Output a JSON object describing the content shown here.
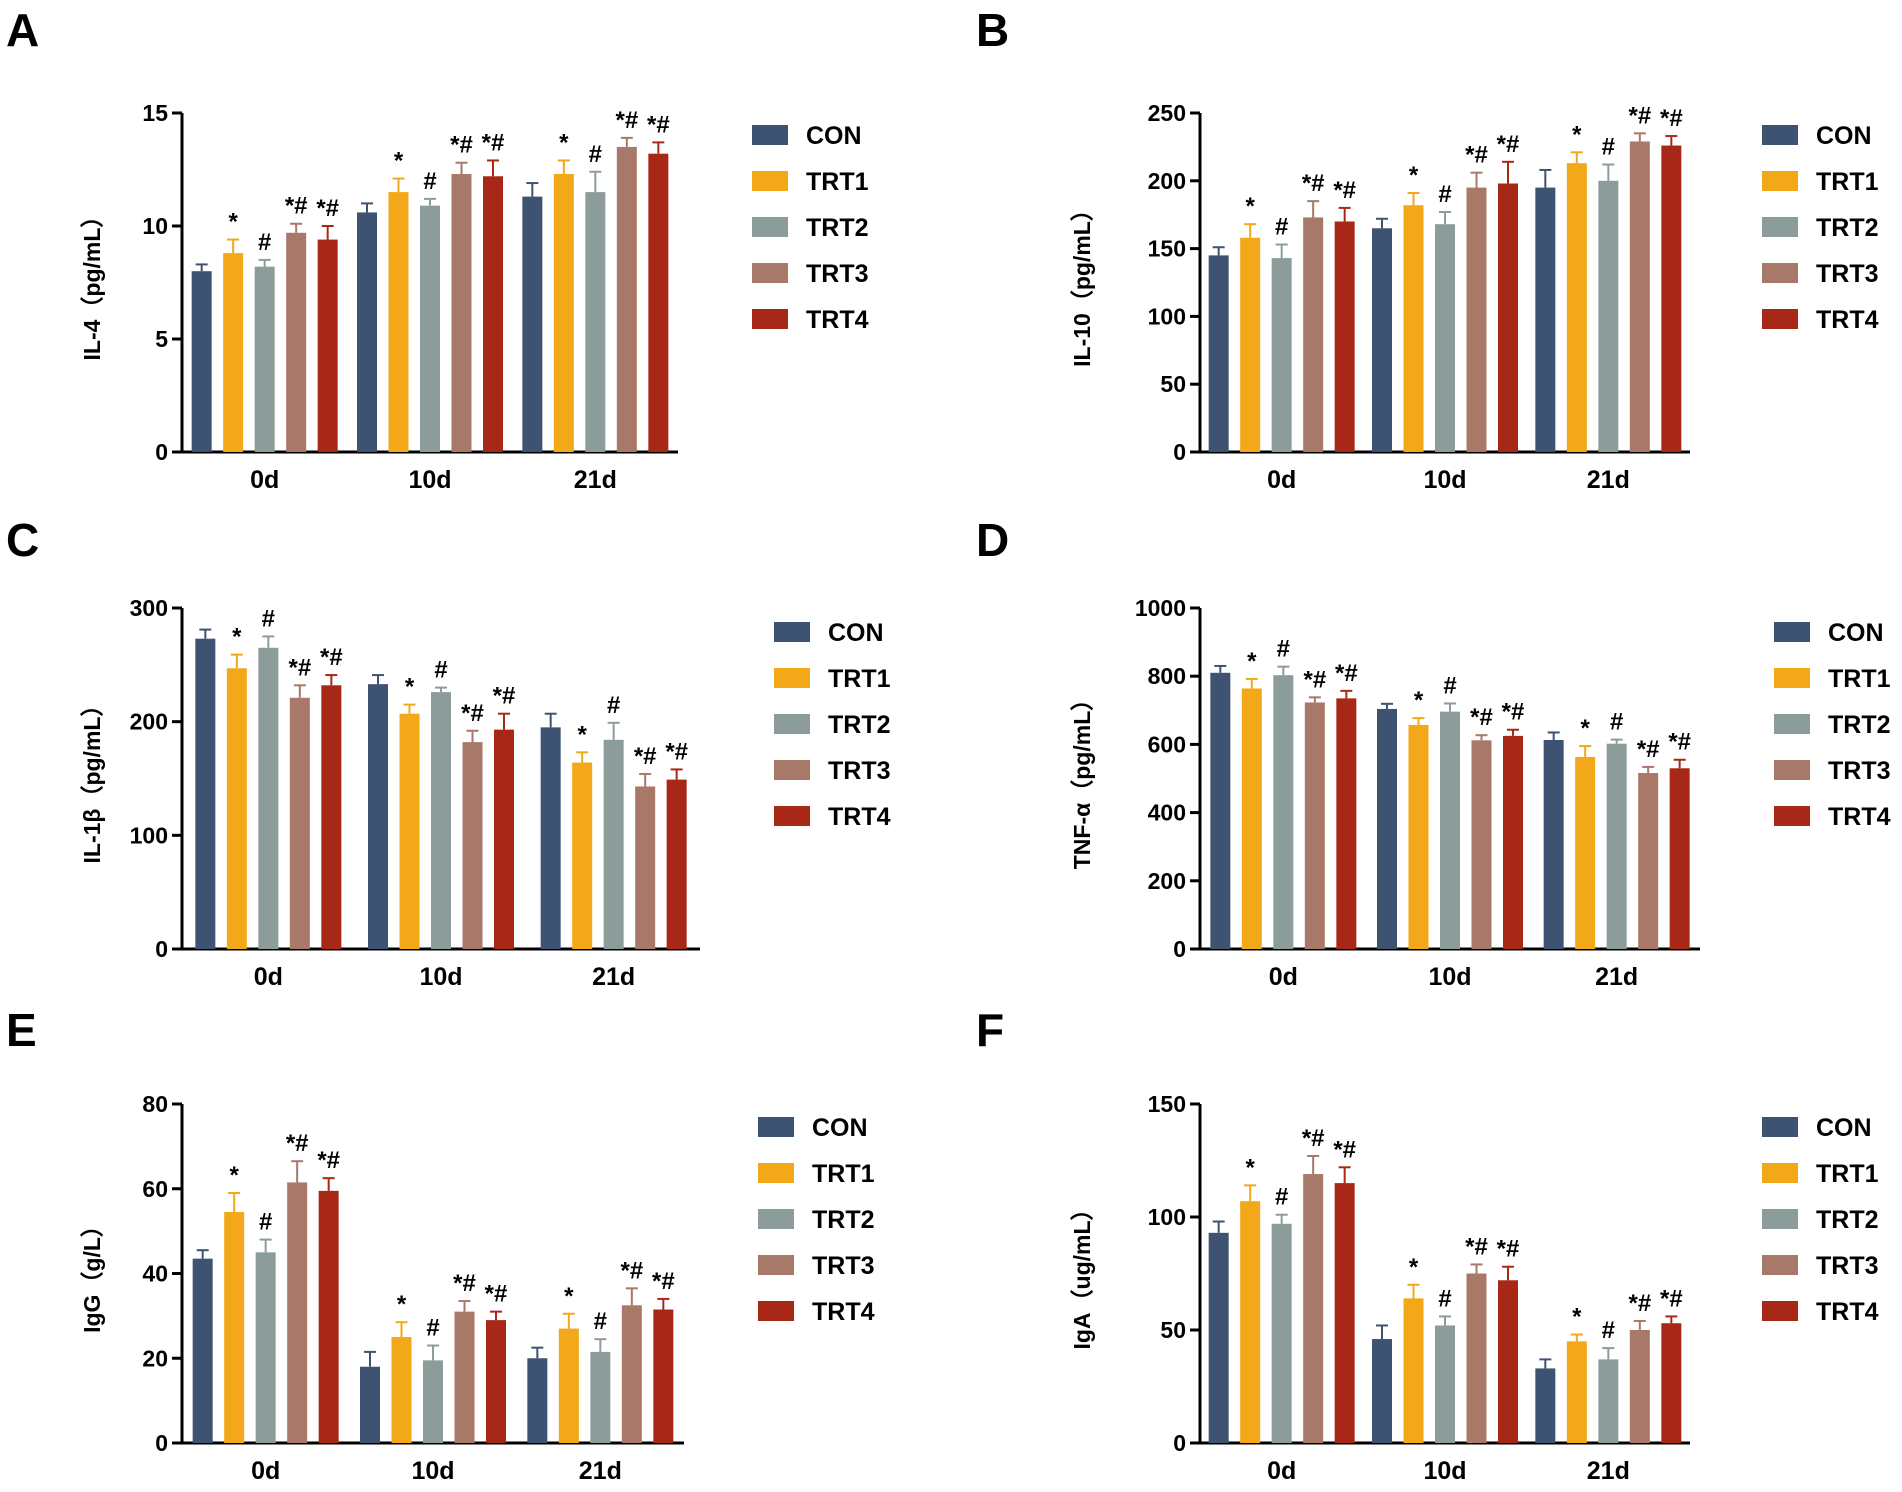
{
  "colors": {
    "series": [
      "#3e5272",
      "#f2a818",
      "#8c9c9a",
      "#a87868",
      "#a82818"
    ],
    "axis": "#000000"
  },
  "chart_data": [
    {
      "panel": "A",
      "type": "bar",
      "ylabel": "IL-4（pg/mL）",
      "categories": [
        "0d",
        "10d",
        "21d"
      ],
      "ylim": [
        0,
        15
      ],
      "yticks": [
        "0",
        "5",
        "10",
        "15"
      ],
      "legend": [
        "CON",
        "TRT1",
        "TRT2",
        "TRT3",
        "TRT4"
      ],
      "series": [
        {
          "name": "CON",
          "values": [
            8.0,
            10.6,
            11.3
          ],
          "errors": [
            0.3,
            0.4,
            0.6
          ],
          "sig": [
            "",
            "",
            ""
          ]
        },
        {
          "name": "TRT1",
          "values": [
            8.8,
            11.5,
            12.3
          ],
          "errors": [
            0.6,
            0.6,
            0.6
          ],
          "sig": [
            "*",
            "*",
            "*"
          ]
        },
        {
          "name": "TRT2",
          "values": [
            8.2,
            10.9,
            11.5
          ],
          "errors": [
            0.3,
            0.3,
            0.9
          ],
          "sig": [
            "#",
            "#",
            "#"
          ]
        },
        {
          "name": "TRT3",
          "values": [
            9.7,
            12.3,
            13.5
          ],
          "errors": [
            0.4,
            0.5,
            0.4
          ],
          "sig": [
            "*#",
            "*#",
            "*#"
          ]
        },
        {
          "name": "TRT4",
          "values": [
            9.4,
            12.2,
            13.2
          ],
          "errors": [
            0.6,
            0.7,
            0.5
          ],
          "sig": [
            "*#",
            "*#",
            "*#"
          ]
        }
      ]
    },
    {
      "panel": "B",
      "type": "bar",
      "ylabel": "IL-10（pg/mL）",
      "categories": [
        "0d",
        "10d",
        "21d"
      ],
      "ylim": [
        0,
        250
      ],
      "yticks": [
        "0",
        "50",
        "100",
        "150",
        "200",
        "250"
      ],
      "legend": [
        "CON",
        "TRT1",
        "TRT2",
        "TRT3",
        "TRT4"
      ],
      "series": [
        {
          "name": "CON",
          "values": [
            145,
            165,
            195
          ],
          "errors": [
            6,
            7,
            13
          ],
          "sig": [
            "",
            "",
            ""
          ]
        },
        {
          "name": "TRT1",
          "values": [
            158,
            182,
            213
          ],
          "errors": [
            10,
            9,
            8
          ],
          "sig": [
            "*",
            "*",
            "*"
          ]
        },
        {
          "name": "TRT2",
          "values": [
            143,
            168,
            200
          ],
          "errors": [
            10,
            9,
            12
          ],
          "sig": [
            "#",
            "#",
            "#"
          ]
        },
        {
          "name": "TRT3",
          "values": [
            173,
            195,
            229
          ],
          "errors": [
            12,
            11,
            6
          ],
          "sig": [
            "*#",
            "*#",
            "*#"
          ]
        },
        {
          "name": "TRT4",
          "values": [
            170,
            198,
            226
          ],
          "errors": [
            10,
            16,
            7
          ],
          "sig": [
            "*#",
            "*#",
            "*#"
          ]
        }
      ]
    },
    {
      "panel": "C",
      "type": "bar",
      "ylabel": "IL-1β（pg/mL）",
      "categories": [
        "0d",
        "10d",
        "21d"
      ],
      "ylim": [
        0,
        300
      ],
      "yticks": [
        "0",
        "100",
        "200",
        "300"
      ],
      "legend": [
        "CON",
        "TRT1",
        "TRT2",
        "TRT3",
        "TRT4"
      ],
      "series": [
        {
          "name": "CON",
          "values": [
            273,
            233,
            195
          ],
          "errors": [
            8,
            8,
            12
          ],
          "sig": [
            "",
            "",
            ""
          ]
        },
        {
          "name": "TRT1",
          "values": [
            247,
            207,
            164
          ],
          "errors": [
            12,
            8,
            9
          ],
          "sig": [
            "*",
            "*",
            "*"
          ]
        },
        {
          "name": "TRT2",
          "values": [
            265,
            226,
            184
          ],
          "errors": [
            10,
            4,
            15
          ],
          "sig": [
            "#",
            "#",
            "#"
          ]
        },
        {
          "name": "TRT3",
          "values": [
            221,
            182,
            143
          ],
          "errors": [
            11,
            10,
            11
          ],
          "sig": [
            "*#",
            "*#",
            "*#"
          ]
        },
        {
          "name": "TRT4",
          "values": [
            232,
            193,
            149
          ],
          "errors": [
            9,
            14,
            9
          ],
          "sig": [
            "*#",
            "*#",
            "*#"
          ]
        }
      ]
    },
    {
      "panel": "D",
      "type": "bar",
      "ylabel": "TNF-α（pg/mL）",
      "categories": [
        "0d",
        "10d",
        "21d"
      ],
      "ylim": [
        0,
        1000
      ],
      "yticks": [
        "0",
        "200",
        "400",
        "600",
        "800",
        "1000"
      ],
      "legend": [
        "CON",
        "TRT1",
        "TRT2",
        "TRT3",
        "TRT4"
      ],
      "series": [
        {
          "name": "CON",
          "values": [
            810,
            704,
            613
          ],
          "errors": [
            20,
            15,
            22
          ],
          "sig": [
            "",
            "",
            ""
          ]
        },
        {
          "name": "TRT1",
          "values": [
            764,
            657,
            563
          ],
          "errors": [
            28,
            20,
            32
          ],
          "sig": [
            "*",
            "*",
            "*"
          ]
        },
        {
          "name": "TRT2",
          "values": [
            803,
            696,
            602
          ],
          "errors": [
            25,
            24,
            12
          ],
          "sig": [
            "#",
            "#",
            "#"
          ]
        },
        {
          "name": "TRT3",
          "values": [
            723,
            612,
            516
          ],
          "errors": [
            15,
            15,
            18
          ],
          "sig": [
            "*#",
            "*#",
            "*#"
          ]
        },
        {
          "name": "TRT4",
          "values": [
            735,
            625,
            530
          ],
          "errors": [
            22,
            18,
            25
          ],
          "sig": [
            "*#",
            "*#",
            "*#"
          ]
        }
      ]
    },
    {
      "panel": "E",
      "type": "bar",
      "ylabel": "IgG（g/L）",
      "categories": [
        "0d",
        "10d",
        "21d"
      ],
      "ylim": [
        0,
        80
      ],
      "yticks": [
        "0",
        "20",
        "40",
        "60",
        "80"
      ],
      "legend": [
        "CON",
        "TRT1",
        "TRT2",
        "TRT3",
        "TRT4"
      ],
      "series": [
        {
          "name": "CON",
          "values": [
            43.5,
            18.0,
            20.0
          ],
          "errors": [
            2.0,
            3.5,
            2.5
          ],
          "sig": [
            "",
            "",
            ""
          ]
        },
        {
          "name": "TRT1",
          "values": [
            54.5,
            25.0,
            27.0
          ],
          "errors": [
            4.5,
            3.5,
            3.5
          ],
          "sig": [
            "*",
            "*",
            "*"
          ]
        },
        {
          "name": "TRT2",
          "values": [
            45.0,
            19.5,
            21.5
          ],
          "errors": [
            3.0,
            3.5,
            3.0
          ],
          "sig": [
            "#",
            "#",
            "#"
          ]
        },
        {
          "name": "TRT3",
          "values": [
            61.5,
            31.0,
            32.5
          ],
          "errors": [
            5.0,
            2.5,
            4.0
          ],
          "sig": [
            "*#",
            "*#",
            "*#"
          ]
        },
        {
          "name": "TRT4",
          "values": [
            59.5,
            29.0,
            31.5
          ],
          "errors": [
            3.0,
            2.0,
            2.5
          ],
          "sig": [
            "*#",
            "*#",
            "*#"
          ]
        }
      ]
    },
    {
      "panel": "F",
      "type": "bar",
      "ylabel": "IgA（ug/mL）",
      "categories": [
        "0d",
        "10d",
        "21d"
      ],
      "ylim": [
        0,
        150
      ],
      "yticks": [
        "0",
        "50",
        "100",
        "150"
      ],
      "legend": [
        "CON",
        "TRT1",
        "TRT2",
        "TRT3",
        "TRT4"
      ],
      "series": [
        {
          "name": "CON",
          "values": [
            93,
            46,
            33
          ],
          "errors": [
            5,
            6,
            4
          ],
          "sig": [
            "",
            "",
            ""
          ]
        },
        {
          "name": "TRT1",
          "values": [
            107,
            64,
            45
          ],
          "errors": [
            7,
            6,
            3
          ],
          "sig": [
            "*",
            "*",
            "*"
          ]
        },
        {
          "name": "TRT2",
          "values": [
            97,
            52,
            37
          ],
          "errors": [
            4,
            4,
            5
          ],
          "sig": [
            "#",
            "#",
            "#"
          ]
        },
        {
          "name": "TRT3",
          "values": [
            119,
            75,
            50
          ],
          "errors": [
            8,
            4,
            4
          ],
          "sig": [
            "*#",
            "*#",
            "*#"
          ]
        },
        {
          "name": "TRT4",
          "values": [
            115,
            72,
            53
          ],
          "errors": [
            7,
            6,
            3
          ],
          "sig": [
            "*#",
            "*#",
            "*#"
          ]
        }
      ]
    }
  ]
}
